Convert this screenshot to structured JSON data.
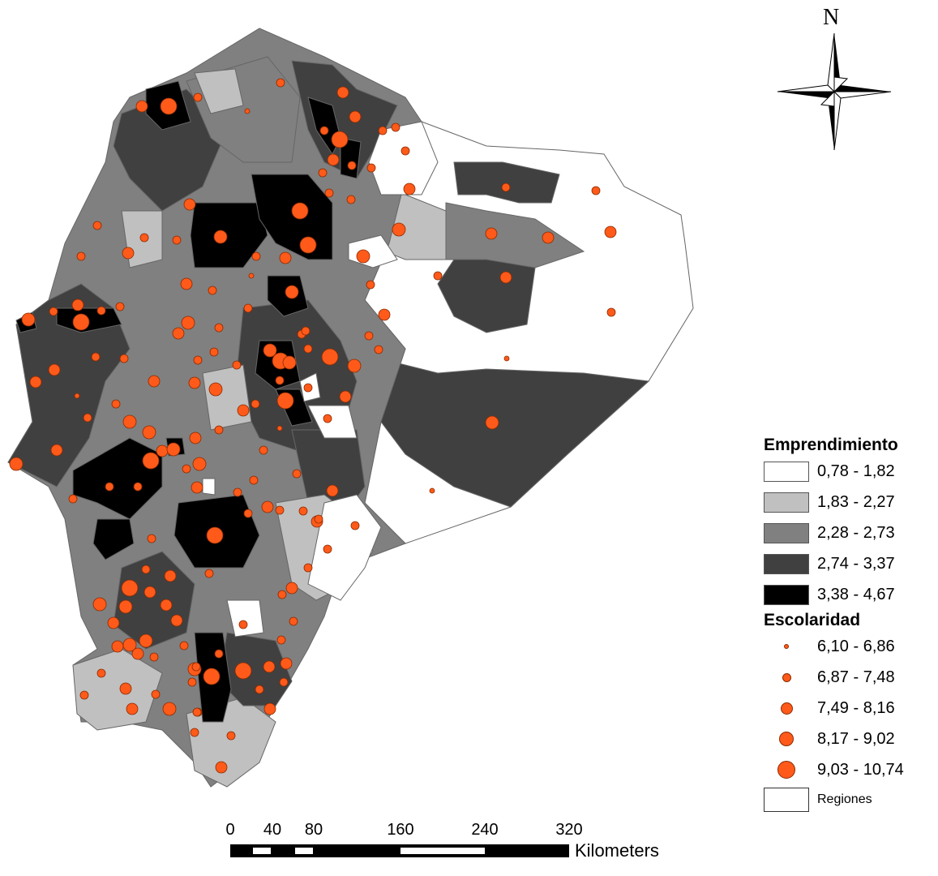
{
  "north_arrow": {
    "label": "N",
    "icon": "compass-rose-icon"
  },
  "legend": {
    "emprendimiento": {
      "title": "Emprendimiento",
      "classes": [
        {
          "label": "0,78 - 1,82",
          "color": "#ffffff"
        },
        {
          "label": "1,83 - 2,27",
          "color": "#c0c0c0"
        },
        {
          "label": "2,28 - 2,73",
          "color": "#808080"
        },
        {
          "label": "2,74 - 3,37",
          "color": "#404040"
        },
        {
          "label": "3,38 - 4,67",
          "color": "#000000"
        }
      ]
    },
    "escolaridad": {
      "title": "Escolaridad",
      "color": "#ff5a1a",
      "classes": [
        {
          "label": "6,10 - 6,86",
          "level": 1
        },
        {
          "label": "6,87 - 7,48",
          "level": 2
        },
        {
          "label": "7,49 - 8,16",
          "level": 3
        },
        {
          "label": "8,17 - 9,02",
          "level": 4
        },
        {
          "label": "9,03 - 10,74",
          "level": 5
        }
      ]
    },
    "regiones": {
      "label": "Regiones",
      "color": "#ffffff"
    }
  },
  "scale_bar": {
    "ticks": [
      "0",
      "40",
      "80",
      "160",
      "240",
      "320"
    ],
    "unit": "Kilometers"
  }
}
